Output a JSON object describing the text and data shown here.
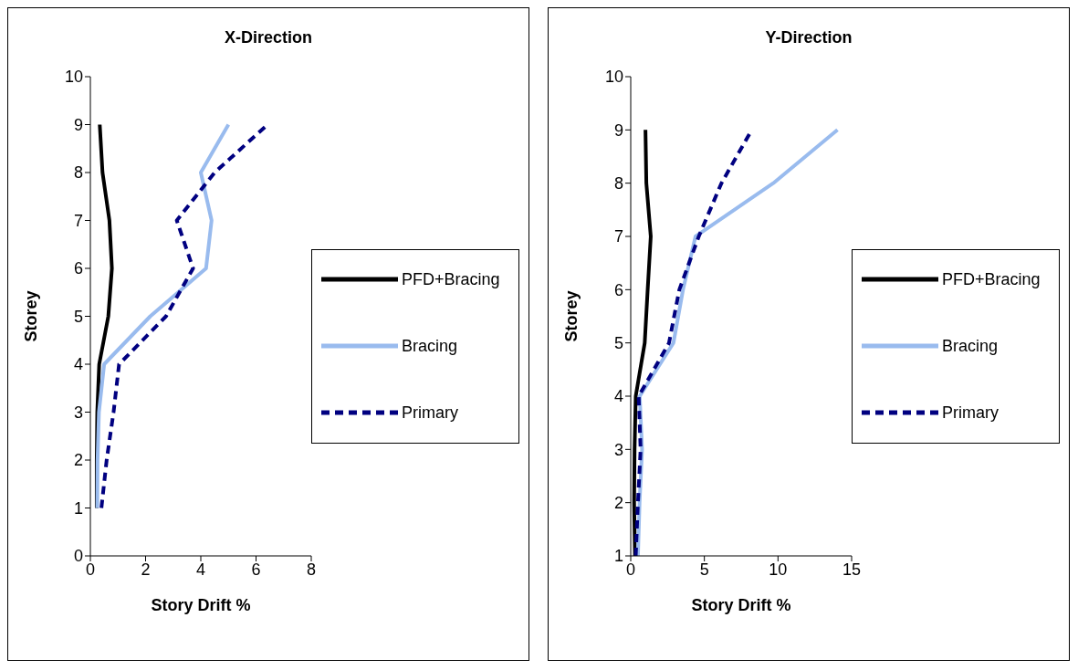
{
  "chart_data": [
    {
      "type": "line",
      "title": "X-Direction",
      "xlabel": "Story Drift %",
      "ylabel": "Storey",
      "xlim": [
        0,
        8
      ],
      "xticks": [
        0,
        2,
        4,
        6,
        8
      ],
      "ylim": [
        0,
        10
      ],
      "yticks": [
        0,
        1,
        2,
        3,
        4,
        5,
        6,
        7,
        8,
        9,
        10
      ],
      "grid": false,
      "legend": "right",
      "marker": "none",
      "series": [
        {
          "name": "PFD+Bracing",
          "color": "#000000",
          "line_style": "solid",
          "x": [
            0.23,
            0.23,
            0.25,
            0.32,
            0.65,
            0.78,
            0.69,
            0.44,
            0.34
          ],
          "values": [
            1,
            2,
            3,
            4,
            5,
            6,
            7,
            8,
            9
          ]
        },
        {
          "name": "Bracing",
          "color": "#99bbee",
          "line_style": "solid",
          "x": [
            0.25,
            0.26,
            0.31,
            0.5,
            2.17,
            4.19,
            4.39,
            4.0,
            5.0
          ],
          "values": [
            1,
            2,
            3,
            4,
            5,
            6,
            7,
            8,
            9
          ]
        },
        {
          "name": "Primary",
          "color": "#000080",
          "line_style": "dashed",
          "x": [
            0.4,
            0.59,
            0.84,
            1.04,
            2.74,
            3.72,
            3.13,
            4.5,
            6.42
          ],
          "values": [
            1,
            2,
            3,
            4,
            5,
            6,
            7,
            8,
            9
          ]
        }
      ]
    },
    {
      "type": "line",
      "title": "Y-Direction",
      "xlabel": "Story Drift %",
      "ylabel": "Storey",
      "xlim": [
        0,
        15
      ],
      "xticks": [
        0,
        5,
        10,
        15
      ],
      "ylim": [
        1,
        10
      ],
      "yticks": [
        1,
        2,
        3,
        4,
        5,
        6,
        7,
        8,
        9,
        10
      ],
      "grid": false,
      "legend": "right",
      "marker": "none",
      "series": [
        {
          "name": "PFD+Bracing",
          "color": "#000000",
          "line_style": "solid",
          "x": [
            0.29,
            0.23,
            0.26,
            0.34,
            0.95,
            1.15,
            1.36,
            1.06,
            1.0
          ],
          "values": [
            1,
            2,
            3,
            4,
            5,
            6,
            7,
            8,
            9
          ]
        },
        {
          "name": "Bracing",
          "color": "#99bbee",
          "line_style": "solid",
          "x": [
            0.49,
            0.6,
            0.77,
            0.61,
            2.9,
            3.55,
            4.4,
            9.68,
            14.04
          ],
          "values": [
            1,
            2,
            3,
            4,
            5,
            6,
            7,
            8,
            9
          ]
        },
        {
          "name": "Primary",
          "color": "#000080",
          "line_style": "dashed",
          "x": [
            0.34,
            0.49,
            0.67,
            0.54,
            2.6,
            3.3,
            4.62,
            6.16,
            8.22
          ],
          "values": [
            1,
            2,
            3,
            4,
            5,
            6,
            7,
            8,
            9
          ]
        }
      ]
    }
  ]
}
